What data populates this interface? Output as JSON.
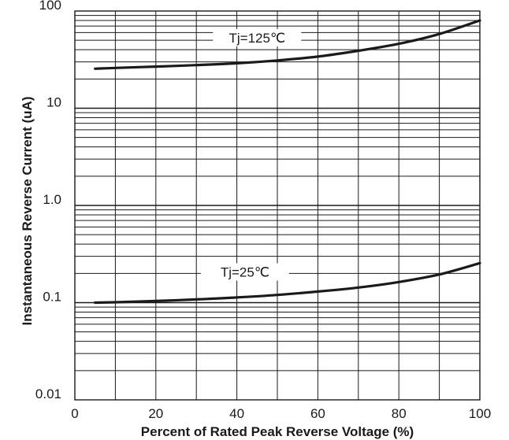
{
  "chart_data": {
    "type": "line",
    "xlabel": "Percent of Rated Peak Reverse Voltage  (%)",
    "ylabel": "Instantaneous Reverse Current (uA)",
    "xlim": [
      0,
      100
    ],
    "ylim": [
      0.01,
      100
    ],
    "yscale": "log",
    "grid": true,
    "x_ticks": [
      "0",
      "20",
      "40",
      "60",
      "80",
      "100"
    ],
    "y_ticks": [
      "0.01",
      "0.1",
      "1.0",
      "10",
      "100"
    ],
    "series": [
      {
        "name": "Tj=125℃",
        "x": [
          5,
          10,
          20,
          30,
          40,
          50,
          60,
          70,
          80,
          90,
          100
        ],
        "y": [
          25.5,
          26,
          26.8,
          27.8,
          29,
          31,
          34,
          39,
          46,
          58,
          80
        ]
      },
      {
        "name": "Tj=25℃",
        "x": [
          5,
          10,
          20,
          30,
          40,
          50,
          60,
          70,
          80,
          90,
          100
        ],
        "y": [
          0.1,
          0.101,
          0.104,
          0.108,
          0.113,
          0.12,
          0.13,
          0.143,
          0.163,
          0.195,
          0.255
        ]
      }
    ],
    "colors": {
      "curve": "#1a1a1a",
      "grid": "#1a1a1a"
    }
  }
}
